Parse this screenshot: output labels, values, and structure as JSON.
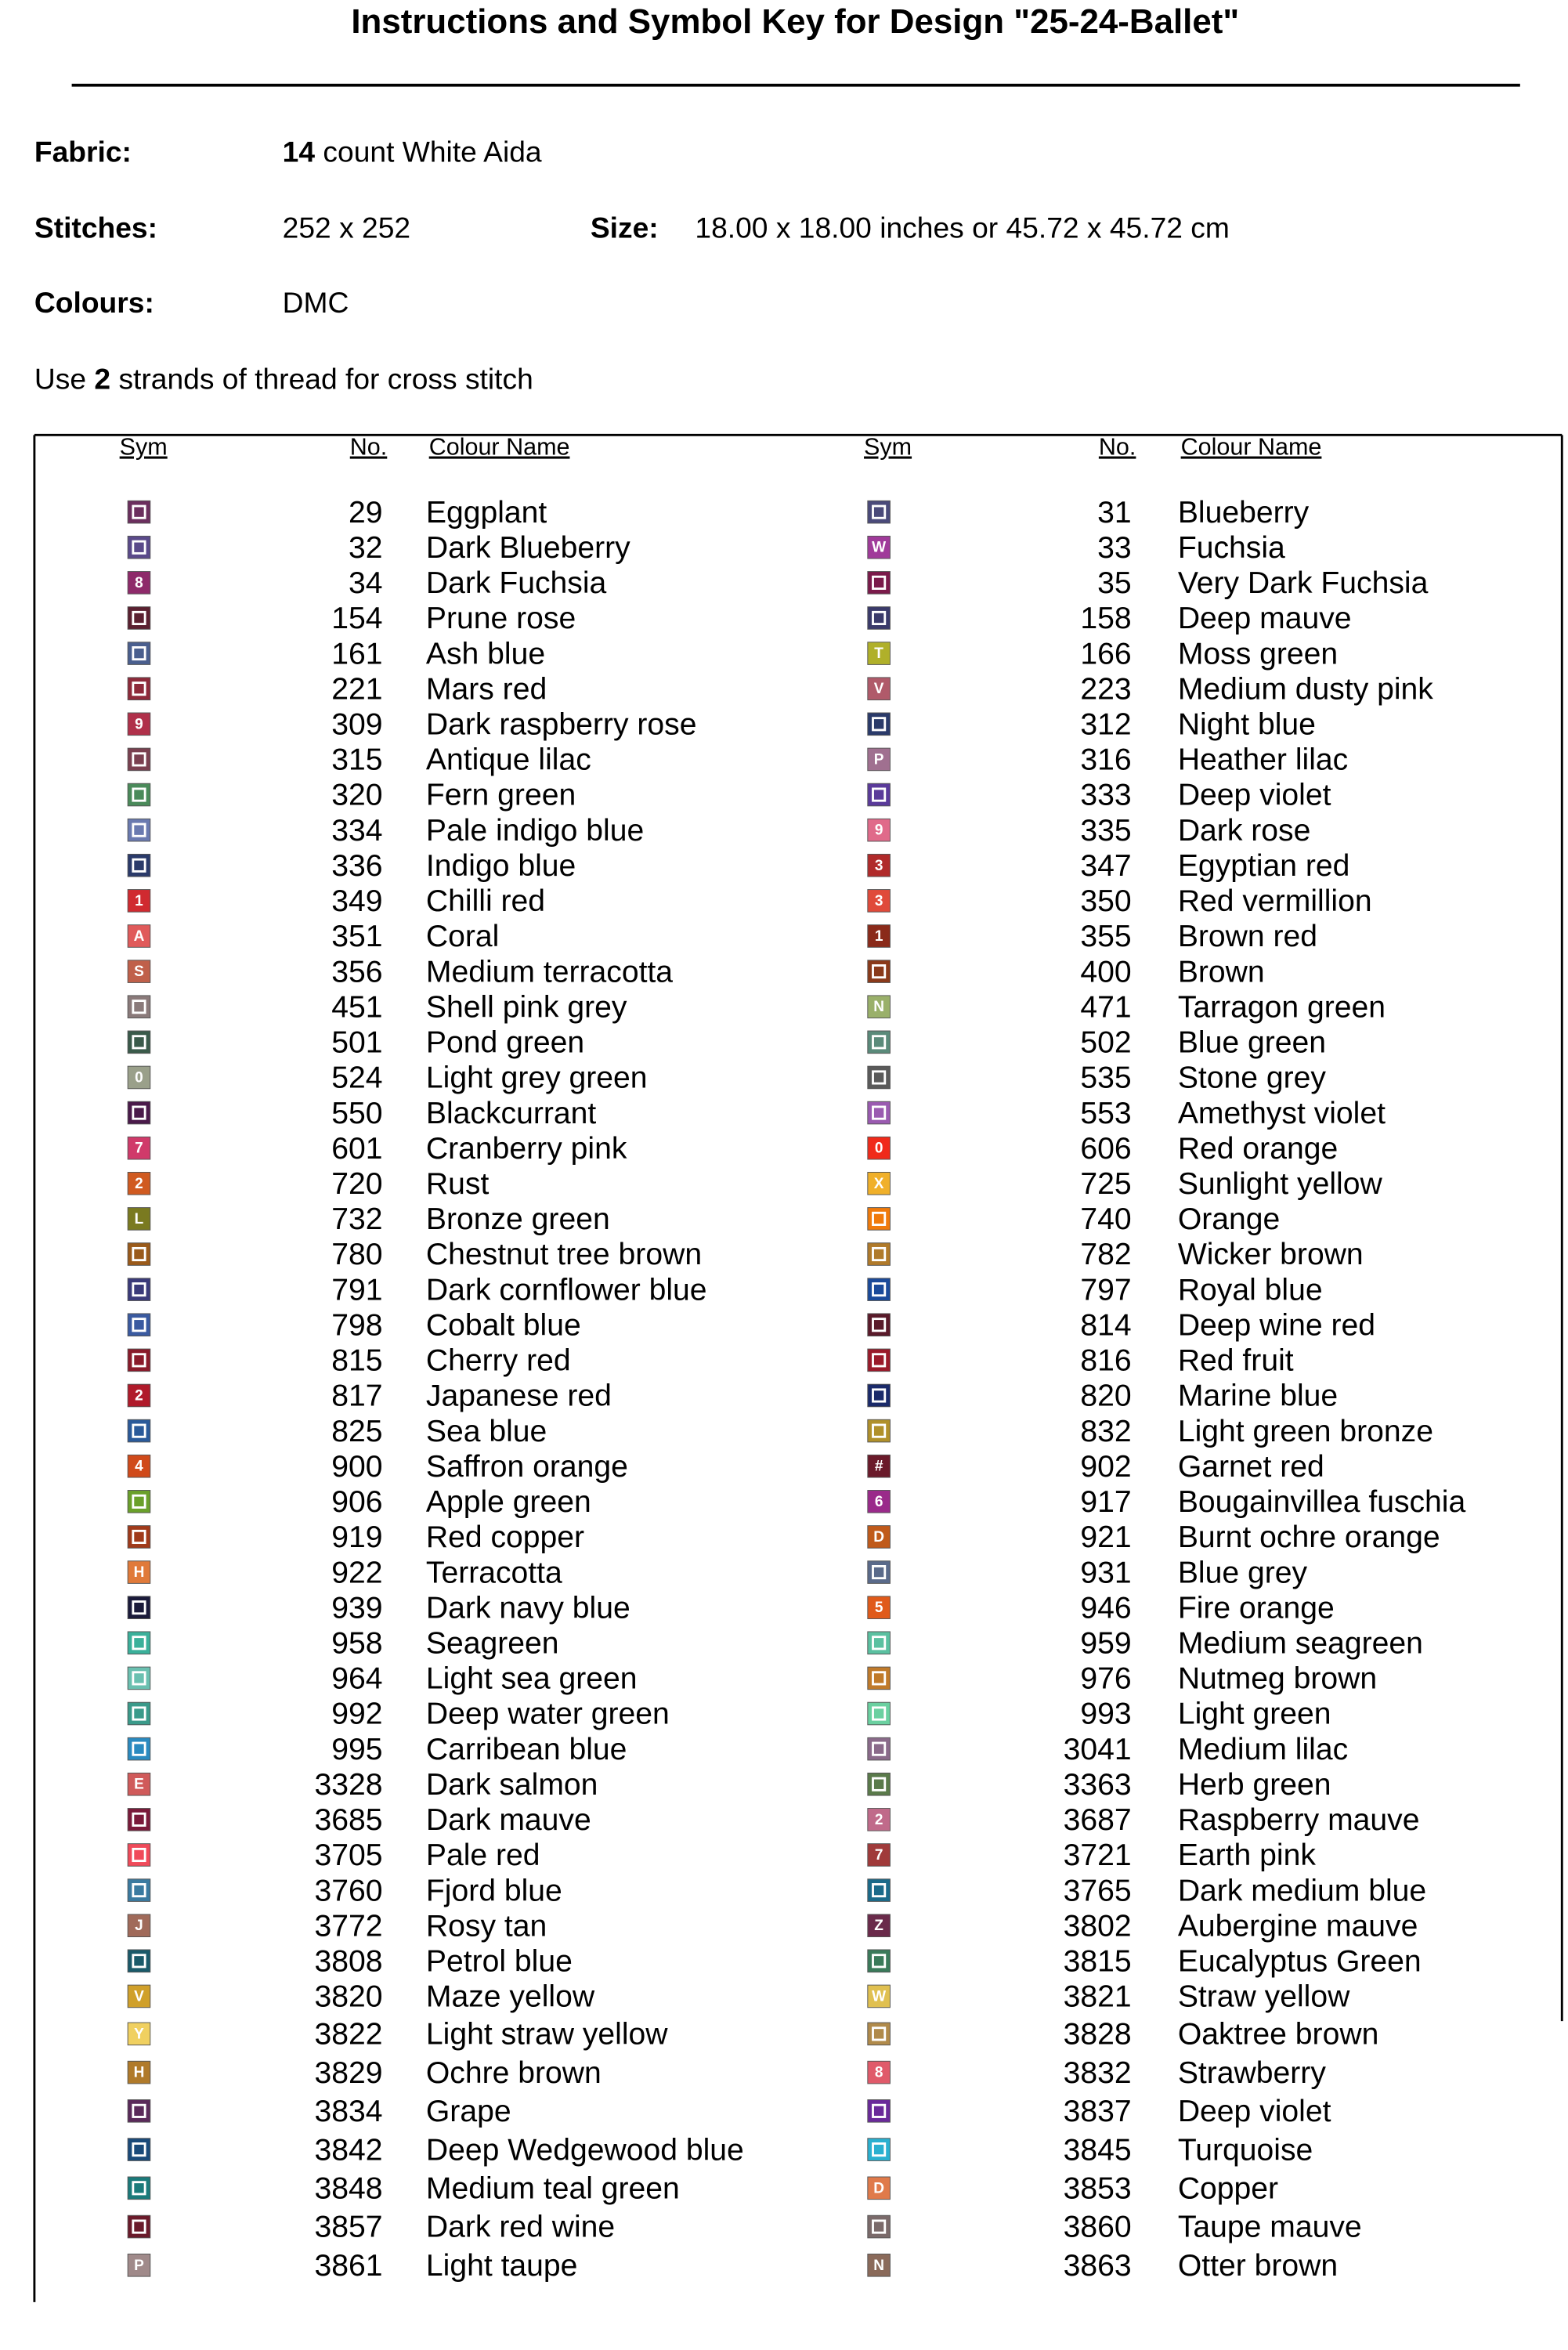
{
  "header": {
    "title": "Instructions and Symbol Key for Design \"25-24-Ballet\""
  },
  "fields": {
    "fabric": {
      "label": "Fabric:",
      "count": "14",
      "text": "count White Aida"
    },
    "stitches": {
      "label": "Stitches:",
      "value": "252 x 252"
    },
    "size": {
      "label": "Size:",
      "value": "18.00 x 18.00 inches or 45.72 x 45.72 cm"
    },
    "colours": {
      "label": "Colours:",
      "value": "DMC"
    },
    "strands": {
      "before": "Use",
      "count": "2",
      "after": "strands of thread for cross stitch"
    }
  },
  "table": {
    "headers": [
      "Sym",
      "No.",
      "Colour Name"
    ],
    "columns": [
      [
        {
          "no": 29,
          "name": "Eggplant",
          "color": "#6b2f5e"
        },
        {
          "no": 32,
          "name": "Dark Blueberry",
          "color": "#5a4a8a"
        },
        {
          "no": 34,
          "name": "Dark Fuchsia",
          "color": "#8e2a6a",
          "sym": "8"
        },
        {
          "no": 154,
          "name": "Prune rose",
          "color": "#5a2030"
        },
        {
          "no": 161,
          "name": "Ash blue",
          "color": "#4a5f8e"
        },
        {
          "no": 221,
          "name": "Mars red",
          "color": "#8e2a3a"
        },
        {
          "no": 309,
          "name": "Dark raspberry rose",
          "color": "#b0304a",
          "sym": "9"
        },
        {
          "no": 315,
          "name": "Antique lilac",
          "color": "#7a4050"
        },
        {
          "no": 320,
          "name": "Fern green",
          "color": "#4a8a5a"
        },
        {
          "no": 334,
          "name": "Pale indigo blue",
          "color": "#6a7ab0"
        },
        {
          "no": 336,
          "name": "Indigo blue",
          "color": "#2a3a6a"
        },
        {
          "no": 349,
          "name": "Chilli red",
          "color": "#d02a30",
          "sym": "1"
        },
        {
          "no": 351,
          "name": "Coral",
          "color": "#e05a5a",
          "sym": "A"
        },
        {
          "no": 356,
          "name": "Medium terracotta",
          "color": "#c0604a",
          "sym": "S"
        },
        {
          "no": 451,
          "name": "Shell pink grey",
          "color": "#8a7a7a"
        },
        {
          "no": 501,
          "name": "Pond green",
          "color": "#3a5a4a"
        },
        {
          "no": 524,
          "name": "Light grey green",
          "color": "#9aa08a",
          "sym": "0"
        },
        {
          "no": 550,
          "name": "Blackcurrant",
          "color": "#4a1a4a"
        },
        {
          "no": 601,
          "name": "Cranberry pink",
          "color": "#d03a6a",
          "sym": "7"
        },
        {
          "no": 720,
          "name": "Rust",
          "color": "#d05a20",
          "sym": "2"
        },
        {
          "no": 732,
          "name": "Bronze green",
          "color": "#7a7a20",
          "sym": "L"
        },
        {
          "no": 780,
          "name": "Chestnut tree brown",
          "color": "#9a5a1a"
        },
        {
          "no": 791,
          "name": "Dark cornflower blue",
          "color": "#3a3a7a"
        },
        {
          "no": 798,
          "name": "Cobalt blue",
          "color": "#3a5aa0"
        },
        {
          "no": 815,
          "name": "Cherry red",
          "color": "#8a1a2a"
        },
        {
          "no": 817,
          "name": "Japanese red",
          "color": "#b01a2a",
          "sym": "2"
        },
        {
          "no": 825,
          "name": "Sea blue",
          "color": "#2a5a9a"
        },
        {
          "no": 900,
          "name": "Saffron orange",
          "color": "#d04a1a",
          "sym": "4"
        },
        {
          "no": 906,
          "name": "Apple green",
          "color": "#6aa02a"
        },
        {
          "no": 919,
          "name": "Red copper",
          "color": "#a03a1a"
        },
        {
          "no": 922,
          "name": "Terracotta",
          "color": "#e07a3a",
          "sym": "H"
        },
        {
          "no": 939,
          "name": "Dark navy blue",
          "color": "#1a1a3a"
        },
        {
          "no": 958,
          "name": "Seagreen",
          "color": "#3ab09a"
        },
        {
          "no": 964,
          "name": "Light sea green",
          "color": "#6ac0b0"
        },
        {
          "no": 992,
          "name": "Deep water green",
          "color": "#3a9a8a"
        },
        {
          "no": 995,
          "name": "Carribean blue",
          "color": "#2a8ac0"
        },
        {
          "no": 3328,
          "name": "Dark salmon",
          "color": "#d05a5a",
          "sym": "E"
        },
        {
          "no": 3685,
          "name": "Dark mauve",
          "color": "#7a1a3a"
        },
        {
          "no": 3705,
          "name": "Pale red",
          "color": "#f04a5a"
        },
        {
          "no": 3760,
          "name": "Fjord blue",
          "color": "#3a7aa0"
        },
        {
          "no": 3772,
          "name": "Rosy tan",
          "color": "#a06a5a",
          "sym": "J"
        },
        {
          "no": 3808,
          "name": "Petrol blue",
          "color": "#1a5a6a"
        },
        {
          "no": 3820,
          "name": "Maze yellow",
          "color": "#d0a02a",
          "sym": "V"
        },
        {
          "no": 3822,
          "name": "Light straw yellow",
          "color": "#f0d060",
          "sym": "Y"
        },
        {
          "no": 3829,
          "name": "Ochre brown",
          "color": "#b07a2a",
          "sym": "H"
        },
        {
          "no": 3834,
          "name": "Grape",
          "color": "#5a2a5a"
        },
        {
          "no": 3842,
          "name": "Deep Wedgewood blue",
          "color": "#1a4a7a"
        },
        {
          "no": 3848,
          "name": "Medium teal green",
          "color": "#1a7a7a"
        },
        {
          "no": 3857,
          "name": "Dark red wine",
          "color": "#6a1a2a"
        },
        {
          "no": 3861,
          "name": "Light taupe",
          "color": "#a08a8a",
          "sym": "P"
        }
      ],
      [
        {
          "no": 31,
          "name": "Blueberry",
          "color": "#4a4a7a"
        },
        {
          "no": 33,
          "name": "Fuchsia",
          "color": "#a03a9a",
          "sym": "W"
        },
        {
          "no": 35,
          "name": "Very Dark Fuchsia",
          "color": "#7a1a4a"
        },
        {
          "no": 158,
          "name": "Deep mauve",
          "color": "#3a3a6a"
        },
        {
          "no": 166,
          "name": "Moss green",
          "color": "#b0b02a",
          "sym": "T"
        },
        {
          "no": 223,
          "name": "Medium dusty pink",
          "color": "#b05a6a",
          "sym": "V"
        },
        {
          "no": 312,
          "name": "Night blue",
          "color": "#2a3a6a"
        },
        {
          "no": 316,
          "name": "Heather lilac",
          "color": "#a07090",
          "sym": "P"
        },
        {
          "no": 333,
          "name": "Deep violet",
          "color": "#5a3a9a"
        },
        {
          "no": 335,
          "name": "Dark rose",
          "color": "#e06a8a",
          "sym": "9"
        },
        {
          "no": 347,
          "name": "Egyptian red",
          "color": "#b02a2a",
          "sym": "3"
        },
        {
          "no": 350,
          "name": "Red vermillion",
          "color": "#e04a3a",
          "sym": "3"
        },
        {
          "no": 355,
          "name": "Brown red",
          "color": "#8a2a1a",
          "sym": "1"
        },
        {
          "no": 400,
          "name": "Brown",
          "color": "#8a3a1a"
        },
        {
          "no": 471,
          "name": "Tarragon green",
          "color": "#9ab06a",
          "sym": "N"
        },
        {
          "no": 502,
          "name": "Blue green",
          "color": "#5a8a7a"
        },
        {
          "no": 535,
          "name": "Stone grey",
          "color": "#5a5a5a"
        },
        {
          "no": 553,
          "name": "Amethyst violet",
          "color": "#9a5ab0"
        },
        {
          "no": 606,
          "name": "Red orange",
          "color": "#f02a1a",
          "sym": "0"
        },
        {
          "no": 725,
          "name": "Sunlight yellow",
          "color": "#f0b02a",
          "sym": "X"
        },
        {
          "no": 740,
          "name": "Orange",
          "color": "#f07a0a"
        },
        {
          "no": 782,
          "name": "Wicker brown",
          "color": "#b07a2a"
        },
        {
          "no": 797,
          "name": "Royal blue",
          "color": "#1a4a9a"
        },
        {
          "no": 814,
          "name": "Deep wine red",
          "color": "#5a1a2a"
        },
        {
          "no": 816,
          "name": "Red fruit",
          "color": "#9a1a2a"
        },
        {
          "no": 820,
          "name": "Marine blue",
          "color": "#1a2a6a"
        },
        {
          "no": 832,
          "name": "Light green bronze",
          "color": "#b0902a"
        },
        {
          "no": 902,
          "name": "Garnet red",
          "color": "#6a1a2a",
          "sym": "#"
        },
        {
          "no": 917,
          "name": "Bougainvillea fuschia",
          "color": "#9a2a8a",
          "sym": "6"
        },
        {
          "no": 921,
          "name": "Burnt ochre orange",
          "color": "#c05a1a",
          "sym": "D"
        },
        {
          "no": 931,
          "name": "Blue grey",
          "color": "#5a6a8a"
        },
        {
          "no": 946,
          "name": "Fire orange",
          "color": "#e05a1a",
          "sym": "5"
        },
        {
          "no": 959,
          "name": "Medium seagreen",
          "color": "#5ac0a0"
        },
        {
          "no": 976,
          "name": "Nutmeg brown",
          "color": "#c07a2a"
        },
        {
          "no": 993,
          "name": "Light green",
          "color": "#6ad0a0"
        },
        {
          "no": 3041,
          "name": "Medium lilac",
          "color": "#8a6a8a"
        },
        {
          "no": 3363,
          "name": "Herb green",
          "color": "#5a7a4a"
        },
        {
          "no": 3687,
          "name": "Raspberry mauve",
          "color": "#c06a8a",
          "sym": "2"
        },
        {
          "no": 3721,
          "name": "Earth pink",
          "color": "#a03a3a",
          "sym": "7"
        },
        {
          "no": 3765,
          "name": "Dark medium blue",
          "color": "#1a6a8a"
        },
        {
          "no": 3802,
          "name": "Aubergine mauve",
          "color": "#6a2a4a",
          "sym": "Z"
        },
        {
          "no": 3815,
          "name": "Eucalyptus Green",
          "color": "#3a7a5a"
        },
        {
          "no": 3821,
          "name": "Straw yellow",
          "color": "#e0c050",
          "sym": "W"
        },
        {
          "no": 3828,
          "name": "Oaktree brown",
          "color": "#b08a4a"
        },
        {
          "no": 3832,
          "name": "Strawberry",
          "color": "#e05a6a",
          "sym": "8"
        },
        {
          "no": 3837,
          "name": "Deep violet",
          "color": "#6a2a9a"
        },
        {
          "no": 3845,
          "name": "Turquoise",
          "color": "#2ab0d0"
        },
        {
          "no": 3853,
          "name": "Copper",
          "color": "#e07a4a",
          "sym": "D"
        },
        {
          "no": 3860,
          "name": "Taupe mauve",
          "color": "#7a6a6a"
        },
        {
          "no": 3863,
          "name": "Otter brown",
          "color": "#8a6a5a",
          "sym": "N"
        }
      ]
    ]
  }
}
